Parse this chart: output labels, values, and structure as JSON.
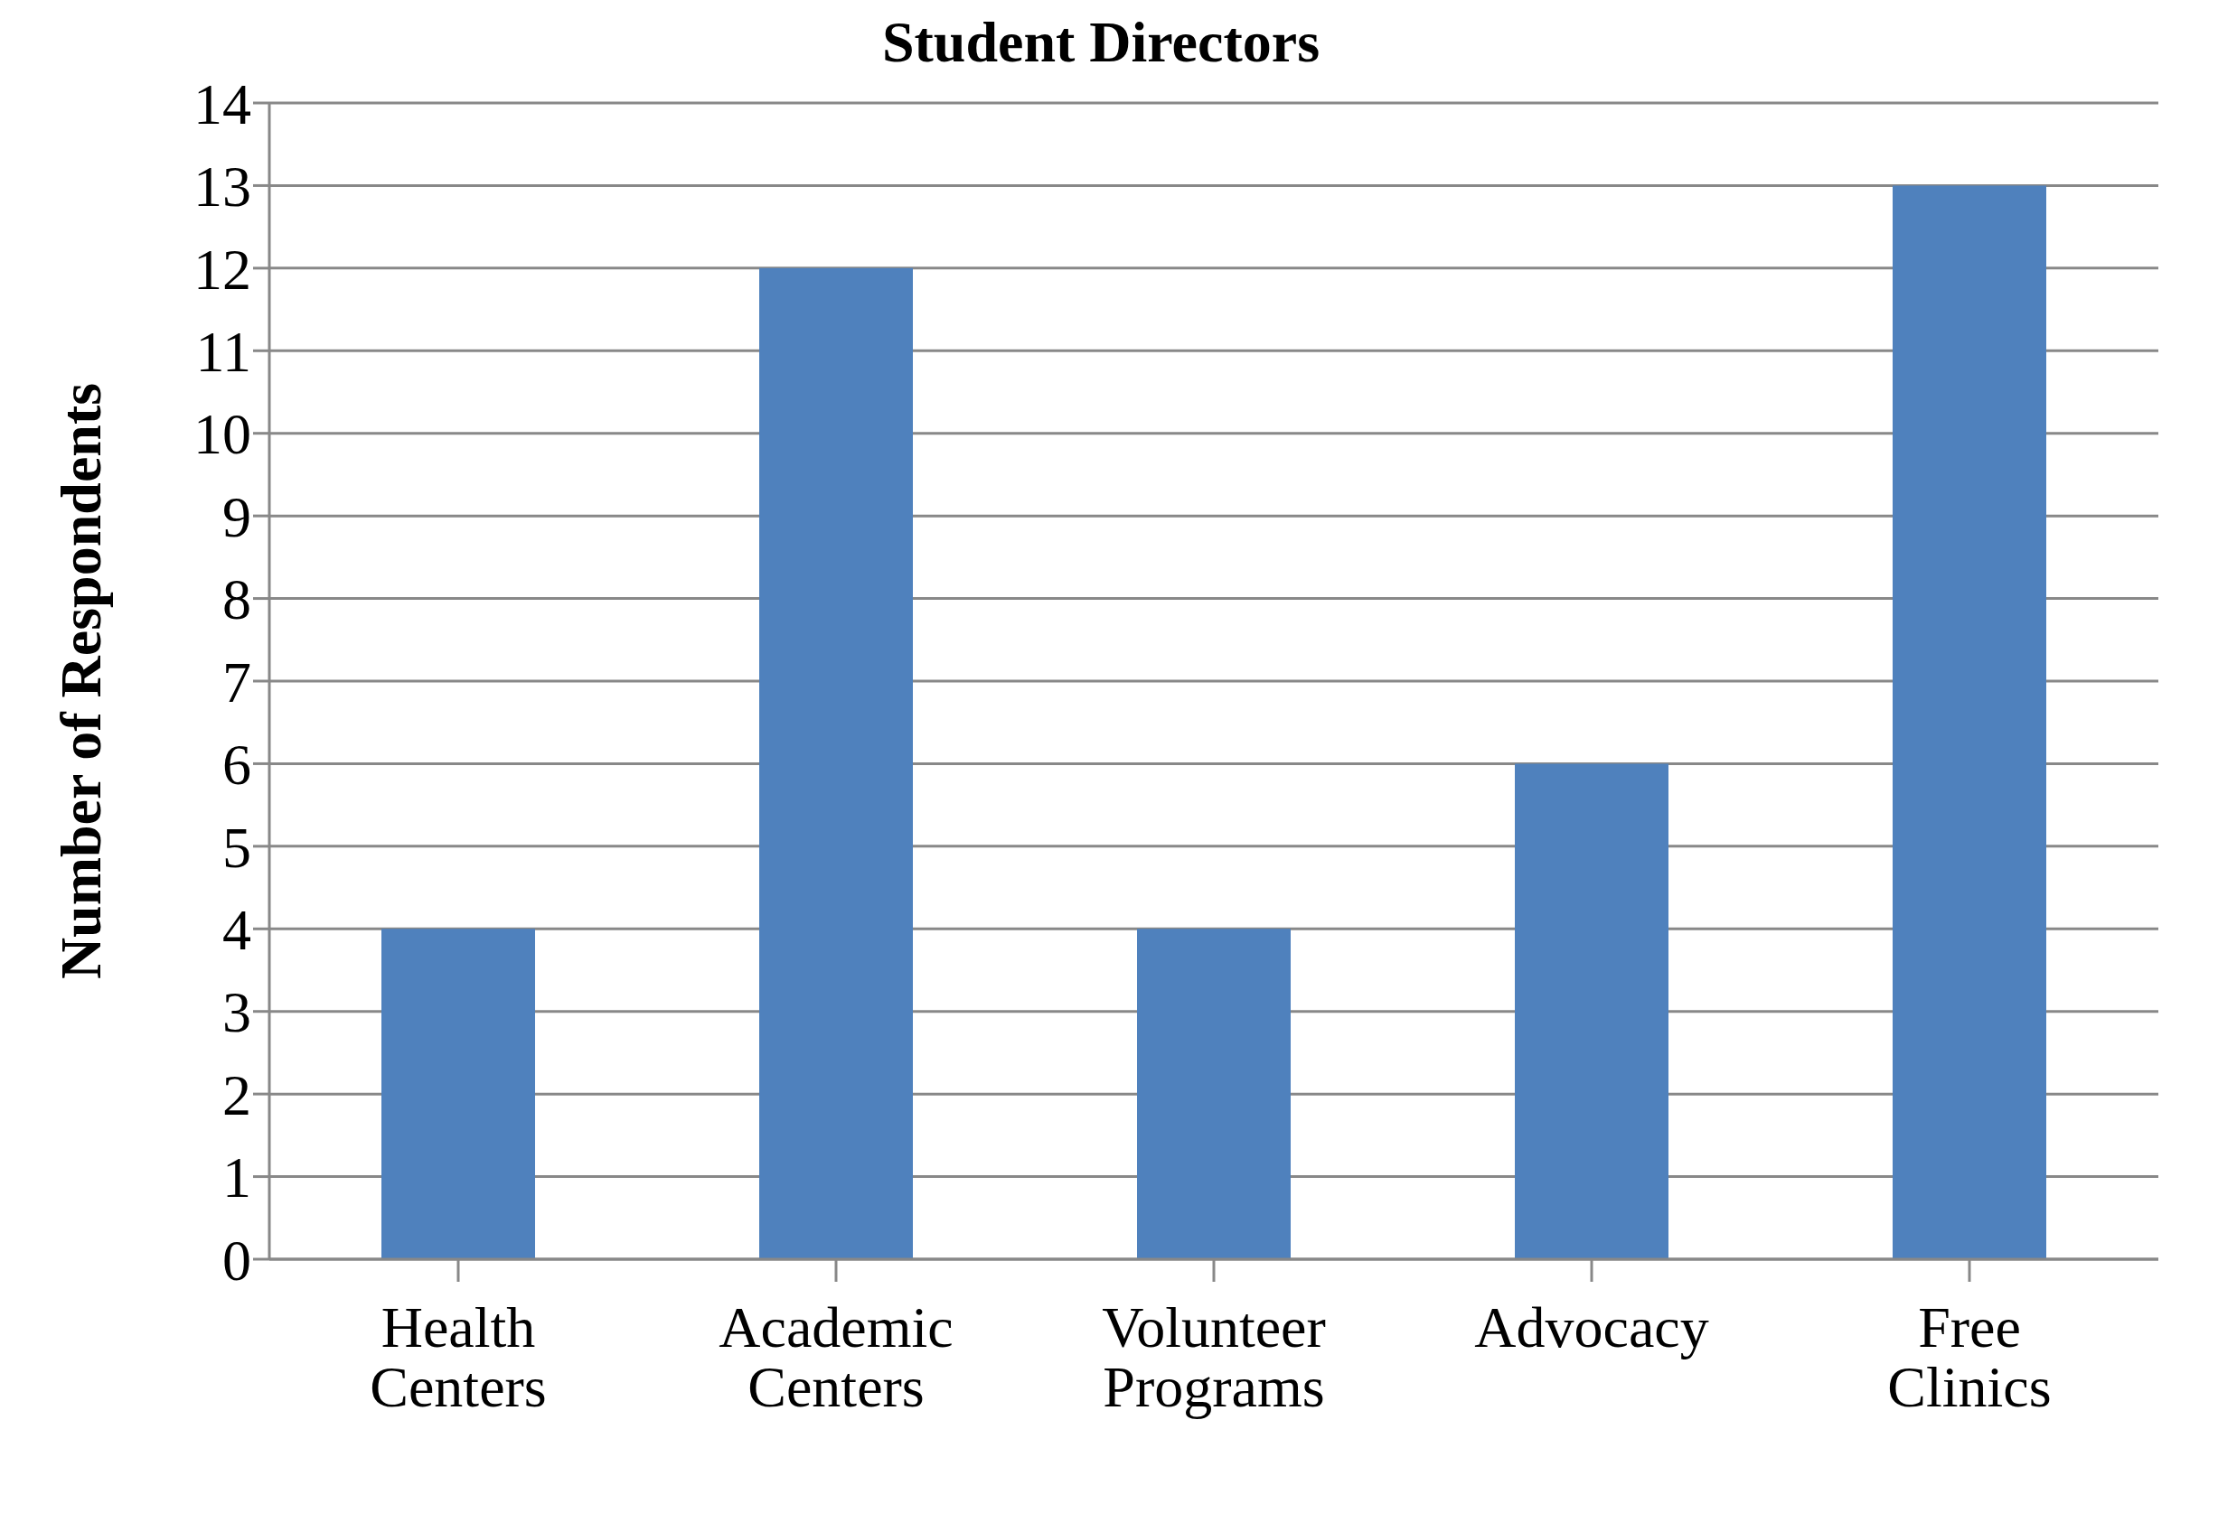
{
  "chart_data": {
    "type": "bar",
    "title": "Student Directors",
    "ylabel": "Number of Respondents",
    "categories": [
      "Health Centers",
      "Academic Centers",
      "Volunteer Programs",
      "Advocacy",
      "Free Clinics"
    ],
    "values": [
      4,
      12,
      4,
      6,
      13
    ],
    "color": "#4f81bd",
    "ylim": [
      0,
      14
    ],
    "yticks": [
      0,
      1,
      2,
      3,
      4,
      5,
      6,
      7,
      8,
      9,
      10,
      11,
      12,
      13,
      14
    ],
    "grid": "y"
  }
}
